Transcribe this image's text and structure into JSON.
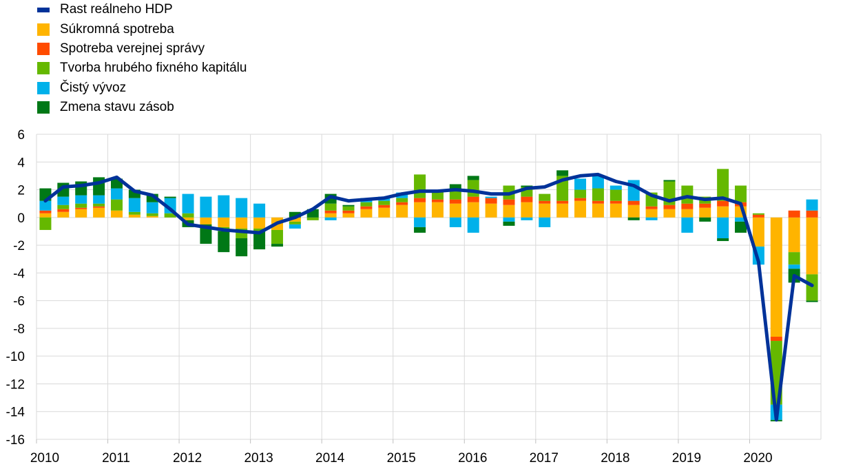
{
  "chart_data": {
    "type": "bar",
    "title": "",
    "xlabel": "",
    "ylabel": "",
    "ylim": [
      -16,
      6
    ],
    "yticks": [
      6,
      4,
      2,
      0,
      -2,
      -4,
      -6,
      -8,
      -10,
      -12,
      -14,
      -16
    ],
    "year_labels": [
      "2010",
      "2011",
      "2012",
      "2013",
      "2014",
      "2015",
      "2016",
      "2017",
      "2018",
      "2019",
      "2020"
    ],
    "x": [
      "2010Q1",
      "2010Q2",
      "2010Q3",
      "2010Q4",
      "2011Q1",
      "2011Q2",
      "2011Q3",
      "2011Q4",
      "2012Q1",
      "2012Q2",
      "2012Q3",
      "2012Q4",
      "2013Q1",
      "2013Q2",
      "2013Q3",
      "2013Q4",
      "2014Q1",
      "2014Q2",
      "2014Q3",
      "2014Q4",
      "2015Q1",
      "2015Q2",
      "2015Q3",
      "2015Q4",
      "2016Q1",
      "2016Q2",
      "2016Q3",
      "2016Q4",
      "2017Q1",
      "2017Q2",
      "2017Q3",
      "2017Q4",
      "2018Q1",
      "2018Q2",
      "2018Q3",
      "2018Q4",
      "2019Q1",
      "2019Q2",
      "2019Q3",
      "2019Q4",
      "2020Q1",
      "2020Q2",
      "2020Q3",
      "2020Q4"
    ],
    "grid": true,
    "legend_position": "top-left",
    "series": [
      {
        "name": "Súkromná spotreba",
        "type": "bar",
        "color": "#FFB400",
        "values": [
          0.3,
          0.4,
          0.6,
          0.7,
          0.5,
          0.2,
          0.1,
          0.0,
          -0.2,
          -0.5,
          -0.7,
          -0.8,
          -0.8,
          -0.9,
          -0.3,
          0.0,
          0.3,
          0.3,
          0.6,
          0.7,
          0.9,
          1.1,
          1.1,
          1.0,
          1.1,
          1.0,
          0.9,
          1.1,
          1.0,
          1.0,
          1.2,
          1.0,
          1.0,
          0.9,
          0.6,
          0.6,
          0.6,
          0.7,
          0.8,
          0.8,
          -2.1,
          -8.6,
          -2.5,
          -4.1
        ]
      },
      {
        "name": "Spotreba verejnej správy",
        "type": "bar",
        "color": "#FF4B00",
        "values": [
          0.2,
          0.2,
          0.1,
          0.1,
          0.0,
          0.0,
          0.0,
          0.0,
          0.0,
          0.0,
          0.0,
          0.0,
          0.0,
          0.0,
          0.0,
          0.0,
          0.2,
          0.2,
          0.2,
          0.2,
          0.2,
          0.3,
          0.2,
          0.3,
          0.4,
          0.4,
          0.4,
          0.4,
          0.2,
          0.2,
          0.2,
          0.2,
          0.2,
          0.3,
          0.2,
          0.3,
          0.4,
          0.3,
          0.4,
          0.3,
          0.2,
          -0.3,
          0.5,
          0.5
        ]
      },
      {
        "name": "Tvorba hrubého fixného kapitálu",
        "type": "bar",
        "color": "#65B800",
        "values": [
          -0.9,
          0.3,
          0.3,
          0.2,
          0.8,
          0.2,
          0.2,
          0.3,
          0.3,
          0.0,
          -0.3,
          -0.7,
          -0.2,
          -1.0,
          -0.2,
          -0.2,
          0.5,
          0.3,
          0.3,
          0.3,
          0.3,
          1.7,
          0.6,
          0.7,
          1.2,
          0.0,
          1.0,
          0.7,
          0.5,
          1.8,
          0.6,
          0.9,
          0.8,
          0.0,
          1.0,
          1.7,
          1.3,
          0.5,
          2.3,
          1.2,
          0.1,
          -4.6,
          -0.9,
          -1.9
        ]
      },
      {
        "name": "Čistý vývoz",
        "type": "bar",
        "color": "#00B1EA",
        "values": [
          0.7,
          0.6,
          0.6,
          0.6,
          0.8,
          1.0,
          0.8,
          1.1,
          1.4,
          1.5,
          1.6,
          1.4,
          1.0,
          0.0,
          -0.3,
          0.0,
          -0.2,
          0.0,
          0.3,
          0.3,
          0.4,
          -0.7,
          0.0,
          -0.7,
          -1.1,
          0.1,
          -0.3,
          -0.2,
          -0.7,
          0.0,
          0.8,
          0.9,
          0.3,
          1.5,
          -0.2,
          0.0,
          -1.1,
          0.0,
          -1.5,
          -0.3,
          -1.3,
          -1.1,
          -0.3,
          0.8
        ]
      },
      {
        "name": "Zmena stavu zásob",
        "type": "bar",
        "color": "#007816",
        "values": [
          0.9,
          1.0,
          1.0,
          1.3,
          0.7,
          0.6,
          0.6,
          0.1,
          -0.5,
          -1.4,
          -1.5,
          -1.3,
          -1.3,
          -0.2,
          0.4,
          0.6,
          0.7,
          0.1,
          0.0,
          0.0,
          0.0,
          -0.4,
          0.0,
          0.4,
          0.3,
          0.0,
          -0.3,
          0.1,
          0.0,
          0.4,
          0.0,
          0.0,
          0.0,
          -0.2,
          0.0,
          0.1,
          0.0,
          -0.3,
          -0.2,
          -0.8,
          0.0,
          -0.1,
          -1.0,
          -0.1
        ]
      },
      {
        "name": "Rast reálneho HDP",
        "type": "line",
        "color": "#003299",
        "values": [
          1.2,
          2.2,
          2.3,
          2.5,
          2.9,
          1.9,
          1.6,
          0.6,
          -0.5,
          -0.7,
          -0.9,
          -1.0,
          -1.1,
          -0.4,
          0.0,
          0.6,
          1.5,
          1.2,
          1.3,
          1.4,
          1.7,
          1.9,
          1.9,
          2.0,
          1.9,
          1.7,
          1.7,
          2.1,
          2.2,
          2.7,
          3.0,
          3.1,
          2.6,
          2.3,
          1.6,
          1.2,
          1.5,
          1.3,
          1.4,
          1.0,
          -3.2,
          -14.6,
          -4.2,
          -4.9
        ]
      }
    ]
  }
}
